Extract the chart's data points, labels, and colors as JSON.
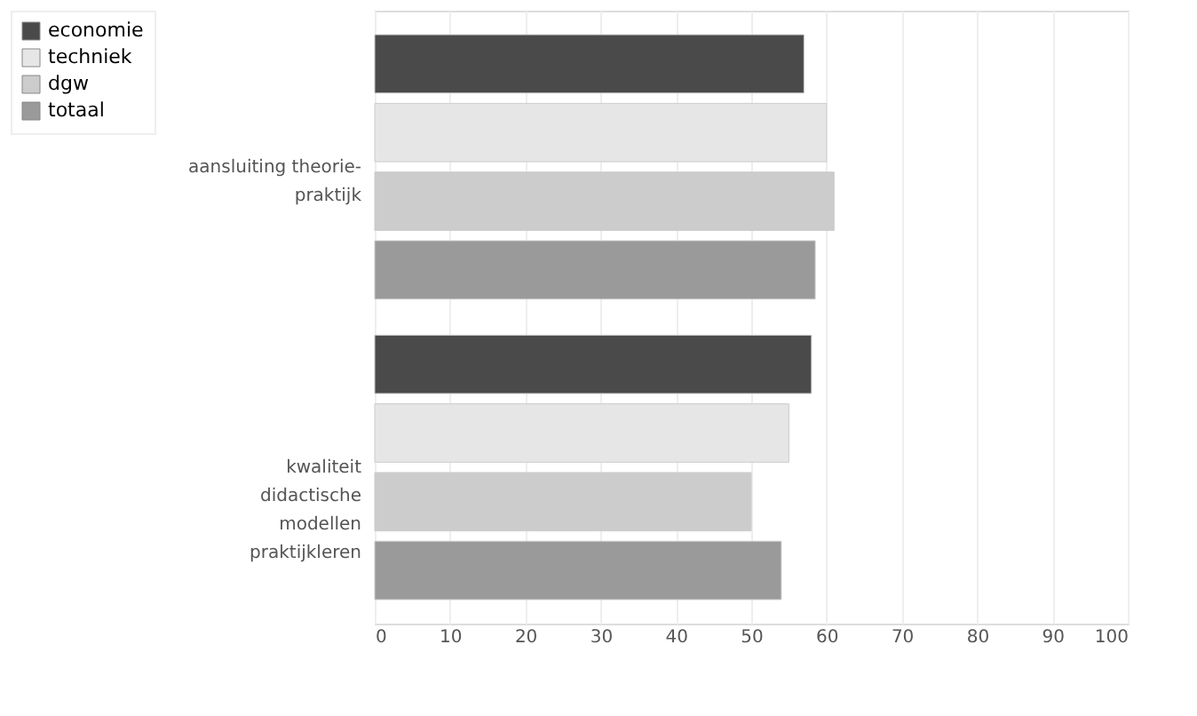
{
  "chart_data": {
    "type": "bar",
    "orientation": "horizontal",
    "categories": [
      "aansluiting theorie-\npraktijk",
      "kwaliteit\ndidactische\nmodellen\npraktijkleren"
    ],
    "series": [
      {
        "name": "economie",
        "color": "#4a4a4a",
        "values": [
          57,
          58
        ]
      },
      {
        "name": "techniek",
        "color": "#e6e6e6",
        "values": [
          60,
          55
        ]
      },
      {
        "name": "dgw",
        "color": "#cccccc",
        "values": [
          61,
          50
        ]
      },
      {
        "name": "totaal",
        "color": "#9a9a9a",
        "values": [
          58.5,
          54
        ]
      }
    ],
    "xlim": [
      0,
      100
    ],
    "xticks": [
      0,
      10,
      20,
      30,
      40,
      50,
      60,
      70,
      80,
      90,
      100
    ],
    "grid": "x",
    "legend": "left"
  }
}
